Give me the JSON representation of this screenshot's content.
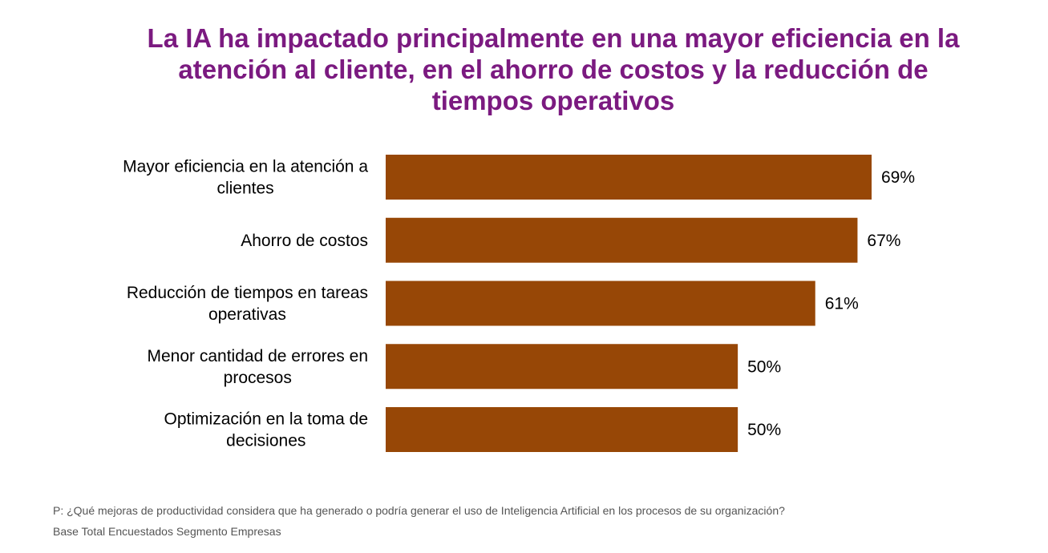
{
  "title": "La IA ha impactado principalmente en una mayor eficiencia en la atención al cliente, en el ahorro de costos y la reducción de tiempos operativos",
  "chart_data": {
    "type": "bar",
    "orientation": "horizontal",
    "categories": [
      [
        "Mayor eficiencia en la atención a",
        "clientes"
      ],
      [
        "Ahorro de costos"
      ],
      [
        "Reducción de tiempos en tareas",
        "operativas"
      ],
      [
        "Menor cantidad de errores en",
        "procesos"
      ],
      [
        "Optimización en la toma de",
        "decisiones"
      ]
    ],
    "values": [
      69,
      67,
      61,
      50,
      50
    ],
    "value_labels": [
      "69%",
      "67%",
      "61%",
      "50%",
      "50%"
    ],
    "unit": "%",
    "bar_color": "#974706",
    "xlim": [
      0,
      100
    ],
    "grid": false,
    "legend": "none"
  },
  "footnotes": {
    "question": "P: ¿Qué mejoras de productividad considera que ha generado o podría generar el uso de Inteligencia Artificial en los procesos de su organización?",
    "base": "Base Total Encuestados  Segmento Empresas"
  }
}
